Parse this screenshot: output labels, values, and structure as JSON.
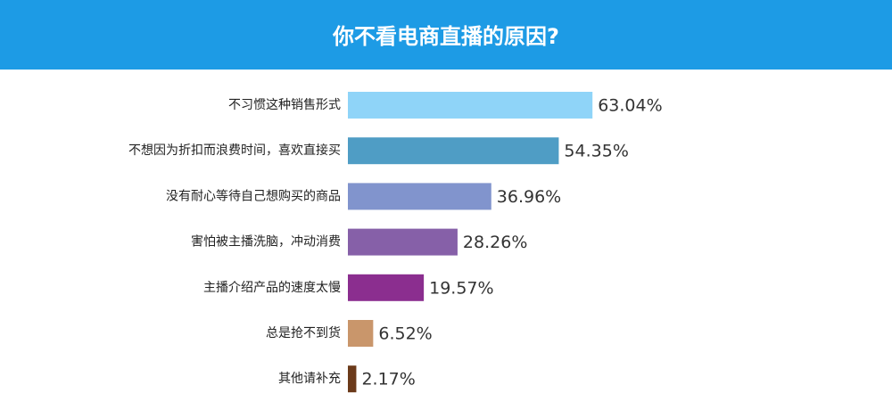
{
  "chart_data": {
    "type": "hbar",
    "title": "你不看电商直播的原因?",
    "categories": [
      "不习惯这种销售形式",
      "不想因为折扣而浪费时间，喜欢直接买",
      "没有耐心等待自己想购买的商品",
      "害怕被主播洗脑，冲动消费",
      "主播介绍产品的速度太慢",
      "总是抢不到货",
      "其他请补充"
    ],
    "values": [
      63.04,
      54.35,
      36.96,
      28.26,
      19.57,
      6.52,
      2.17
    ],
    "value_labels": [
      "63.04%",
      "54.35%",
      "36.96%",
      "28.26%",
      "19.57%",
      "6.52%",
      "2.17%"
    ],
    "colors": [
      "#8fd4f8",
      "#4f9dc5",
      "#8194cd",
      "#8660a8",
      "#8b2e8f",
      "#c9966b",
      "#6b3a1a"
    ]
  }
}
